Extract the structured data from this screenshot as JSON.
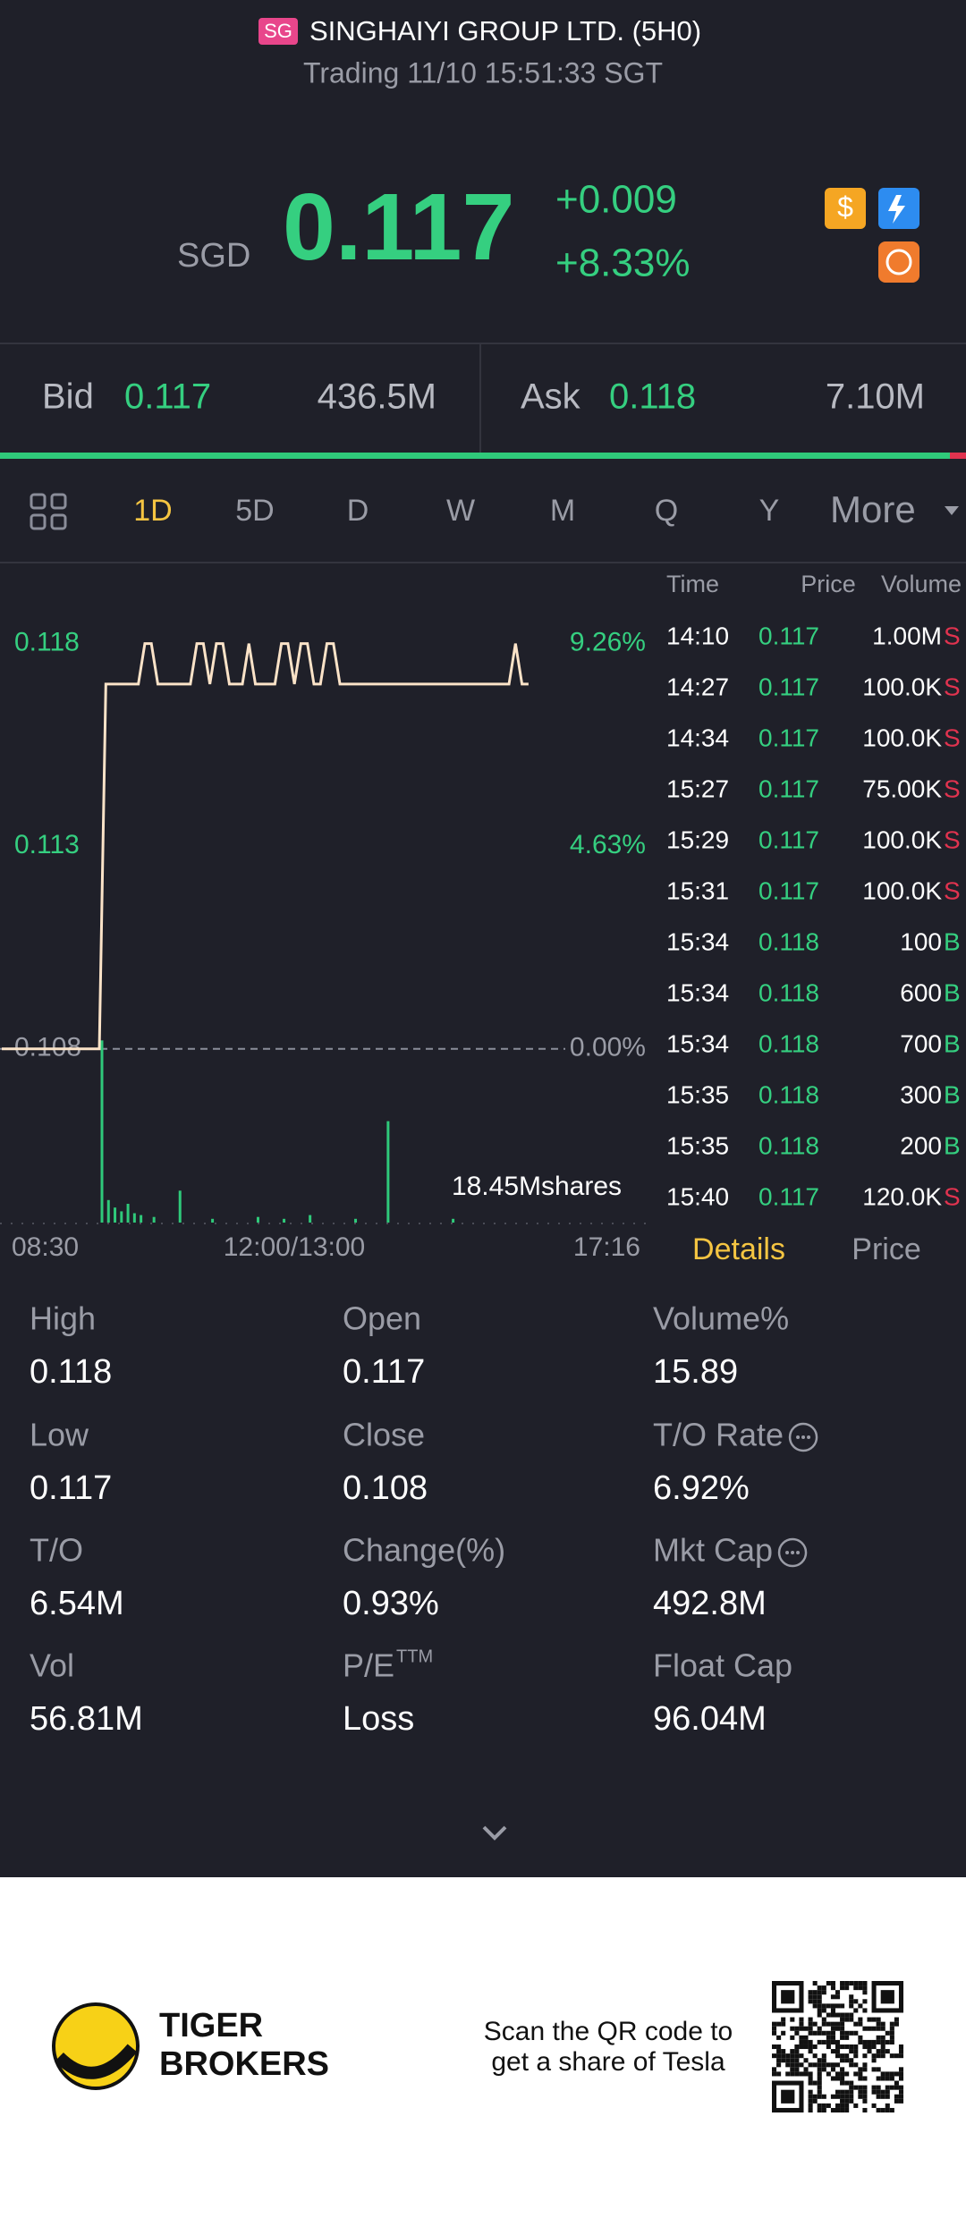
{
  "header": {
    "badge": "SG",
    "title": "SINGHAIYI GROUP LTD. (5H0)",
    "status": "Trading 11/10 15:51:33 SGT"
  },
  "quote": {
    "currency": "SGD",
    "price": "0.117",
    "change": "+0.009",
    "change_pct": "+8.33%"
  },
  "bid_ask": {
    "bid_label": "Bid",
    "bid": "0.117",
    "bid_size": "436.5M",
    "ask_label": "Ask",
    "ask": "0.118",
    "ask_size": "7.10M"
  },
  "tabs": [
    "1D",
    "5D",
    "D",
    "W",
    "M",
    "Q",
    "Y",
    "More"
  ],
  "chart": {
    "type": "line",
    "ylim": [
      0.1055,
      0.12
    ],
    "yticks": [
      0.118,
      0.113,
      0.108
    ],
    "pct_labels": [
      "9.26%",
      "4.63%",
      "0.00%"
    ],
    "baseline": 0.108,
    "x_labels": [
      "08:30",
      "12:00/13:00",
      "17:16"
    ],
    "price": [
      0.108,
      0.108,
      0.108,
      0.108,
      0.108,
      0.108,
      0.108,
      0.108,
      0.108,
      0.108,
      0.108,
      0.108,
      0.108,
      0.108,
      0.108,
      0.108,
      0.117,
      0.117,
      0.117,
      0.117,
      0.117,
      0.117,
      0.118,
      0.118,
      0.117,
      0.117,
      0.117,
      0.117,
      0.117,
      0.117,
      0.118,
      0.118,
      0.117,
      0.118,
      0.118,
      0.117,
      0.117,
      0.117,
      0.118,
      0.117,
      0.117,
      0.117,
      0.117,
      0.118,
      0.118,
      0.117,
      0.118,
      0.118,
      0.117,
      0.117,
      0.118,
      0.118,
      0.117,
      0.117,
      0.117,
      0.117,
      0.117,
      0.117,
      0.117,
      0.117,
      0.117,
      0.117,
      0.117,
      0.117,
      0.117,
      0.117,
      0.117,
      0.117,
      0.117,
      0.117,
      0.117,
      0.117,
      0.117,
      0.117,
      0.117,
      0.117,
      0.117,
      0.117,
      0.117,
      0.118,
      0.117,
      0.117
    ],
    "vlim": [
      0,
      10
    ],
    "volume": [
      null,
      null,
      null,
      null,
      null,
      null,
      null,
      null,
      null,
      null,
      null,
      null,
      null,
      null,
      null,
      null,
      9.7,
      1.2,
      0.8,
      0.6,
      1.0,
      0.5,
      0.4,
      null,
      0.3,
      null,
      null,
      null,
      1.7,
      null,
      null,
      null,
      null,
      0.2,
      null,
      null,
      null,
      null,
      null,
      null,
      0.3,
      null,
      null,
      null,
      0.2,
      null,
      null,
      null,
      0.4,
      null,
      null,
      null,
      null,
      null,
      null,
      0.2,
      null,
      null,
      null,
      null,
      5.4,
      null,
      null,
      null,
      null,
      null,
      null,
      null,
      null,
      null,
      0.2,
      null,
      null,
      null,
      null,
      null,
      null,
      null,
      null,
      null,
      null,
      null
    ],
    "volume_label": "18.45Mshares"
  },
  "ticks": {
    "headers": [
      "Time",
      "Price",
      "Volume"
    ],
    "rows": [
      [
        "14:10",
        "0.117",
        "1.00M",
        "S"
      ],
      [
        "14:27",
        "0.117",
        "100.0K",
        "S"
      ],
      [
        "14:34",
        "0.117",
        "100.0K",
        "S"
      ],
      [
        "15:27",
        "0.117",
        "75.00K",
        "S"
      ],
      [
        "15:29",
        "0.117",
        "100.0K",
        "S"
      ],
      [
        "15:31",
        "0.117",
        "100.0K",
        "S"
      ],
      [
        "15:34",
        "0.118",
        "100",
        "B"
      ],
      [
        "15:34",
        "0.118",
        "600",
        "B"
      ],
      [
        "15:34",
        "0.118",
        "700",
        "B"
      ],
      [
        "15:35",
        "0.118",
        "300",
        "B"
      ],
      [
        "15:35",
        "0.118",
        "200",
        "B"
      ],
      [
        "15:40",
        "0.117",
        "120.0K",
        "S"
      ]
    ]
  },
  "detail_tabs": [
    "Details",
    "Price"
  ],
  "stats": [
    {
      "label": "High",
      "value": "0.118"
    },
    {
      "label": "Open",
      "value": "0.117"
    },
    {
      "label": "Volume%",
      "value": "15.89"
    },
    {
      "label": "Low",
      "value": "0.117"
    },
    {
      "label": "Close",
      "value": "0.108"
    },
    {
      "label": "T/O Rate",
      "value": "6.92%"
    },
    {
      "label": "T/O",
      "value": "6.54M"
    },
    {
      "label": "Change(%)",
      "value": "0.93%"
    },
    {
      "label": "Mkt Cap",
      "value": "492.8M"
    },
    {
      "label": "Vol",
      "value": "56.81M"
    },
    {
      "label": "P/E",
      "sup": "TTM",
      "value": "Loss"
    },
    {
      "label": "Float Cap",
      "value": "96.04M"
    }
  ],
  "footer": {
    "brand": [
      "TIGER",
      "BROKERS"
    ],
    "scan": [
      "Scan the QR code to",
      "get a share of Tesla"
    ]
  }
}
